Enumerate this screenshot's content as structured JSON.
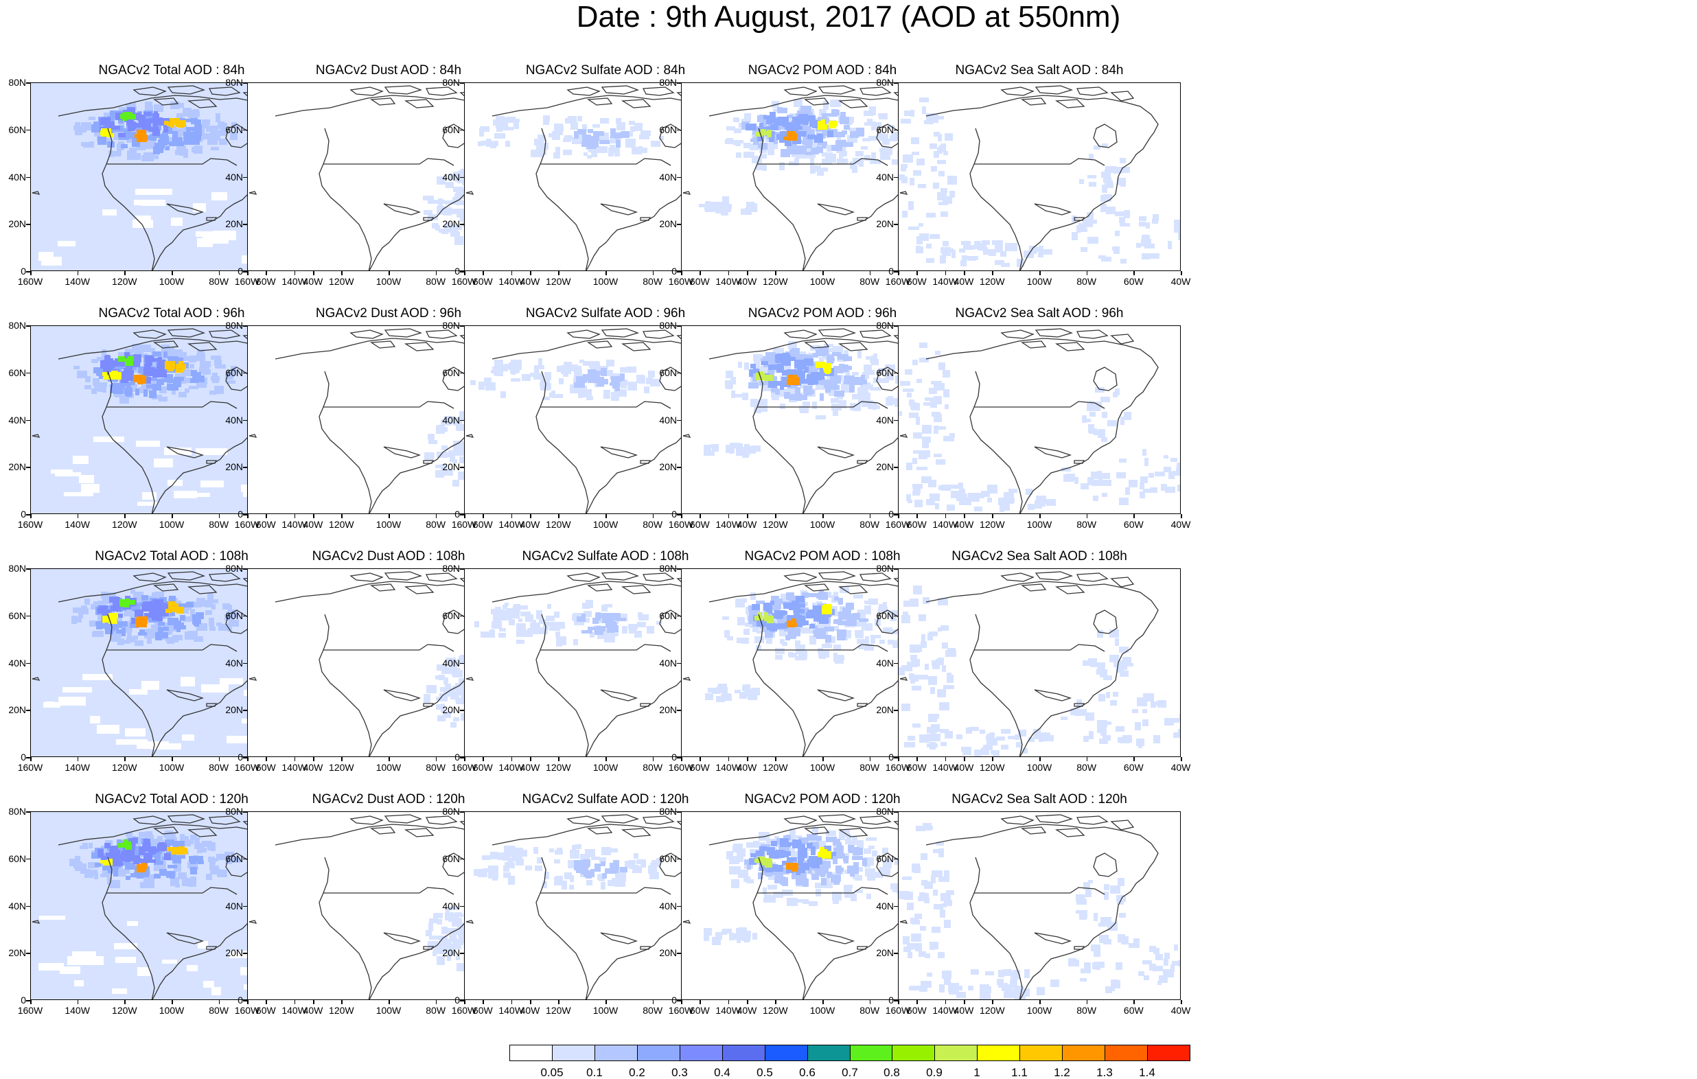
{
  "title": "Date : 9th August, 2017 (AOD at 550nm)",
  "panels": [
    [
      "NGACv2 Total AOD : 84h",
      "NGACv2 Dust AOD : 84h",
      "NGACv2 Sulfate AOD : 84h",
      "NGACv2 POM AOD : 84h",
      "NGACv2 Sea Salt AOD : 84h"
    ],
    [
      "NGACv2 Total AOD : 96h",
      "NGACv2 Dust AOD : 96h",
      "NGACv2 Sulfate AOD : 96h",
      "NGACv2 POM AOD : 96h",
      "NGACv2 Sea Salt AOD : 96h"
    ],
    [
      "NGACv2 Total AOD : 108h",
      "NGACv2 Dust AOD : 108h",
      "NGACv2 Sulfate AOD : 108h",
      "NGACv2 POM AOD : 108h",
      "NGACv2 Sea Salt AOD : 108h"
    ],
    [
      "NGACv2 Total AOD : 120h",
      "NGACv2 Dust AOD : 120h",
      "NGACv2 Sulfate AOD : 120h",
      "NGACv2 POM AOD : 120h",
      "NGACv2 Sea Salt  AOD : 120h"
    ]
  ],
  "lat_labels": [
    "80N",
    "60N",
    "40N",
    "20N",
    "0"
  ],
  "lon_labels": [
    "160W",
    "140W",
    "120W",
    "100W",
    "80W",
    "60W",
    "40W"
  ],
  "colorbar": {
    "labels": [
      "0.05",
      "0.1",
      "0.2",
      "0.3",
      "0.4",
      "0.5",
      "0.6",
      "0.7",
      "0.8",
      "0.9",
      "1",
      "1.1",
      "1.2",
      "1.3",
      "1.4"
    ],
    "colors": [
      "#ffffff",
      "#d6e2ff",
      "#b4c8ff",
      "#8eaaff",
      "#7c8cff",
      "#5b6ef0",
      "#1a5cff",
      "#0d9494",
      "#5ef01c",
      "#96f000",
      "#c8f050",
      "#ffff00",
      "#ffc800",
      "#ff9600",
      "#ff6400",
      "#ff2000"
    ]
  }
}
